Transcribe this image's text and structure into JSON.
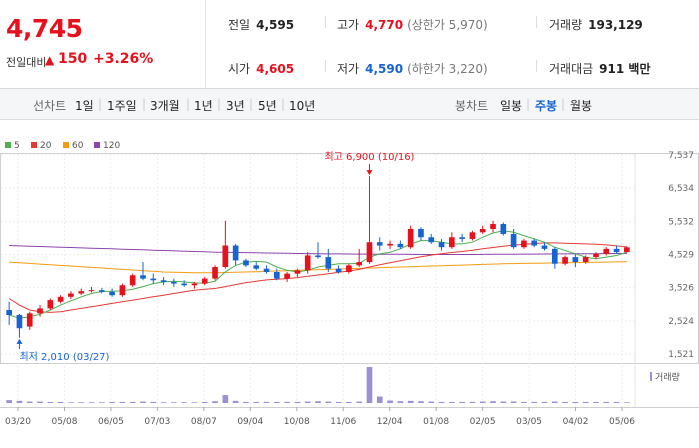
{
  "header": {
    "price": "4,745",
    "change_label": "전일대비",
    "change_arrow": "▲",
    "change_value": "150",
    "change_pct": "+3.26%",
    "metrics": {
      "prev_close": {
        "label": "전일",
        "value": "4,595"
      },
      "high": {
        "label": "고가",
        "value": "4,770",
        "sub": "(상한가 5,970)"
      },
      "volume": {
        "label": "거래량",
        "value": "193,129"
      },
      "open": {
        "label": "시가",
        "value": "4,605"
      },
      "low": {
        "label": "저가",
        "value": "4,590",
        "sub": "(하한가 3,220)"
      },
      "trade_value": {
        "label": "거래대금",
        "value": "911 백만"
      }
    }
  },
  "period_bar": {
    "line_chart_label": "선차트",
    "line_periods": [
      "1일",
      "1주일",
      "3개월",
      "1년",
      "3년",
      "5년",
      "10년"
    ],
    "candle_chart_label": "봉차트",
    "candle_periods": [
      "일봉",
      "주봉",
      "월봉"
    ],
    "candle_selected": "주봉"
  },
  "colors": {
    "up": "#e5121d",
    "down": "#1763d1",
    "ma5": "#4caf50",
    "ma20": "#e53935",
    "ma60": "#f39c12",
    "ma120": "#8e44ad",
    "volume": "#9b8fd6"
  },
  "chart_data": {
    "type": "candlestick",
    "legend": [
      "5",
      "20",
      "60",
      "120"
    ],
    "y_ticks": [
      "7,537",
      "6,534",
      "5,532",
      "4,529",
      "3,526",
      "2,524",
      "1,521"
    ],
    "y_range": [
      1521,
      7537
    ],
    "x_labels": [
      "03/20",
      "05/08",
      "06/05",
      "07/03",
      "08/07",
      "09/04",
      "10/08",
      "11/06",
      "12/04",
      "01/08",
      "02/05",
      "03/05",
      "04/02",
      "05/06"
    ],
    "high_annotation": "최고 6,900 (10/16)",
    "low_annotation": "최저 2,010 (03/27)",
    "volume_label": "거래량",
    "candles": [
      [
        2850,
        3100,
        2400,
        2700
      ],
      [
        2700,
        2730,
        2010,
        2300
      ],
      [
        2350,
        2800,
        2250,
        2750
      ],
      [
        2750,
        3000,
        2650,
        2900
      ],
      [
        2900,
        3200,
        2850,
        3150
      ],
      [
        3100,
        3300,
        3050,
        3250
      ],
      [
        3250,
        3420,
        3180,
        3350
      ],
      [
        3350,
        3500,
        3300,
        3420
      ],
      [
        3420,
        3550,
        3380,
        3450
      ],
      [
        3450,
        3520,
        3350,
        3400
      ],
      [
        3400,
        3500,
        3250,
        3300
      ],
      [
        3300,
        3650,
        3250,
        3600
      ],
      [
        3600,
        3950,
        3550,
        3900
      ],
      [
        3900,
        4300,
        3750,
        3800
      ],
      [
        3800,
        3950,
        3650,
        3750
      ],
      [
        3750,
        3850,
        3600,
        3700
      ],
      [
        3700,
        3800,
        3550,
        3650
      ],
      [
        3650,
        3750,
        3550,
        3600
      ],
      [
        3600,
        3700,
        3500,
        3650
      ],
      [
        3650,
        3850,
        3600,
        3800
      ],
      [
        3800,
        4200,
        3750,
        4150
      ],
      [
        4150,
        5550,
        4100,
        4800
      ],
      [
        4800,
        4850,
        4200,
        4350
      ],
      [
        4350,
        4400,
        4150,
        4200
      ],
      [
        4200,
        4300,
        4050,
        4100
      ],
      [
        4100,
        4200,
        3950,
        4000
      ],
      [
        4000,
        4100,
        3750,
        3800
      ],
      [
        3800,
        4000,
        3700,
        3950
      ],
      [
        3950,
        4100,
        3850,
        4050
      ],
      [
        4050,
        4600,
        3950,
        4500
      ],
      [
        4500,
        4900,
        4400,
        4450
      ],
      [
        4450,
        4700,
        4000,
        4100
      ],
      [
        4100,
        4200,
        3950,
        4000
      ],
      [
        4000,
        4250,
        3950,
        4200
      ],
      [
        4200,
        4700,
        4150,
        4300
      ],
      [
        4300,
        6900,
        4250,
        4900
      ],
      [
        4900,
        5050,
        4650,
        4800
      ],
      [
        4800,
        4950,
        4700,
        4850
      ],
      [
        4850,
        4950,
        4700,
        4750
      ],
      [
        4750,
        5400,
        4700,
        5300
      ],
      [
        5300,
        5350,
        4950,
        5050
      ],
      [
        5050,
        5150,
        4850,
        4900
      ],
      [
        4900,
        5000,
        4650,
        4750
      ],
      [
        4750,
        5200,
        4700,
        5050
      ],
      [
        5050,
        5150,
        4900,
        5000
      ],
      [
        5000,
        5250,
        4950,
        5200
      ],
      [
        5200,
        5400,
        5150,
        5300
      ],
      [
        5300,
        5550,
        5200,
        5450
      ],
      [
        5450,
        5500,
        5100,
        5150
      ],
      [
        5150,
        5300,
        4700,
        4750
      ],
      [
        4750,
        5000,
        4700,
        4950
      ],
      [
        4950,
        5000,
        4750,
        4800
      ],
      [
        4800,
        4900,
        4650,
        4700
      ],
      [
        4700,
        4750,
        4100,
        4250
      ],
      [
        4250,
        4500,
        4200,
        4450
      ],
      [
        4450,
        4550,
        4150,
        4300
      ],
      [
        4300,
        4500,
        4250,
        4450
      ],
      [
        4450,
        4600,
        4400,
        4550
      ],
      [
        4550,
        4750,
        4500,
        4700
      ],
      [
        4700,
        4800,
        4550,
        4600
      ],
      [
        4600,
        4770,
        4590,
        4745
      ]
    ],
    "volumes": [
      8,
      6,
      4,
      4,
      3,
      3,
      2,
      2,
      2,
      2,
      3,
      3,
      3,
      4,
      3,
      2,
      2,
      2,
      2,
      3,
      5,
      22,
      6,
      3,
      3,
      3,
      3,
      3,
      3,
      4,
      5,
      4,
      3,
      3,
      4,
      100,
      18,
      7,
      5,
      6,
      5,
      4,
      3,
      3,
      3,
      3,
      4,
      5,
      4,
      4,
      3,
      3,
      3,
      4,
      3,
      3,
      3,
      3,
      3,
      3,
      2
    ],
    "ma5": [
      2700,
      2600,
      2650,
      2720,
      2850,
      3000,
      3130,
      3250,
      3350,
      3410,
      3420,
      3430,
      3480,
      3560,
      3650,
      3700,
      3720,
      3700,
      3670,
      3660,
      3720,
      4000,
      4200,
      4300,
      4320,
      4300,
      4150,
      4050,
      4000,
      4050,
      4150,
      4200,
      4250,
      4250,
      4260,
      4450,
      4550,
      4600,
      4700,
      4850,
      4950,
      4950,
      4900,
      4850,
      4850,
      4900,
      5050,
      5180,
      5250,
      5200,
      5100,
      5000,
      4900,
      4750,
      4650,
      4550,
      4450,
      4400,
      4450,
      4500,
      4600
    ],
    "ma20": [
      3200,
      3000,
      2850,
      2800,
      2780,
      2800,
      2850,
      2900,
      2950,
      3000,
      3050,
      3100,
      3150,
      3200,
      3250,
      3300,
      3350,
      3400,
      3450,
      3480,
      3500,
      3560,
      3620,
      3680,
      3720,
      3760,
      3780,
      3800,
      3830,
      3870,
      3910,
      3950,
      3990,
      4030,
      4080,
      4150,
      4220,
      4280,
      4340,
      4400,
      4460,
      4510,
      4550,
      4590,
      4620,
      4660,
      4700,
      4740,
      4780,
      4810,
      4840,
      4860,
      4880,
      4880,
      4870,
      4860,
      4850,
      4840,
      4820,
      4790,
      4760
    ],
    "ma60": [
      4300,
      4280,
      4260,
      4240,
      4220,
      4200,
      4180,
      4160,
      4140,
      4120,
      4100,
      4080,
      4060,
      4040,
      4020,
      4000,
      3990,
      3985,
      3980,
      3980,
      3980,
      3985,
      3990,
      4000,
      4010,
      4020,
      4030,
      4040,
      4050,
      4060,
      4070,
      4080,
      4090,
      4100,
      4110,
      4120,
      4130,
      4140,
      4150,
      4160,
      4170,
      4180,
      4190,
      4200,
      4210,
      4220,
      4230,
      4240,
      4250,
      4255,
      4260,
      4265,
      4270,
      4275,
      4280,
      4285,
      4290,
      4295,
      4300,
      4305,
      4310
    ],
    "ma120": [
      4800,
      4790,
      4780,
      4770,
      4760,
      4750,
      4740,
      4730,
      4720,
      4710,
      4700,
      4690,
      4680,
      4670,
      4660,
      4650,
      4640,
      4630,
      4620,
      4610,
      4600,
      4595,
      4590,
      4585,
      4580,
      4575,
      4570,
      4565,
      4560,
      4555,
      4550,
      4548,
      4546,
      4544,
      4542,
      4540,
      4538,
      4536,
      4534,
      4532,
      4530,
      4530,
      4530,
      4530,
      4530,
      4530,
      4532,
      4534,
      4536,
      4538,
      4540,
      4542,
      4544,
      4546,
      4548,
      4550,
      4552,
      4554,
      4556,
      4558,
      4560
    ]
  }
}
